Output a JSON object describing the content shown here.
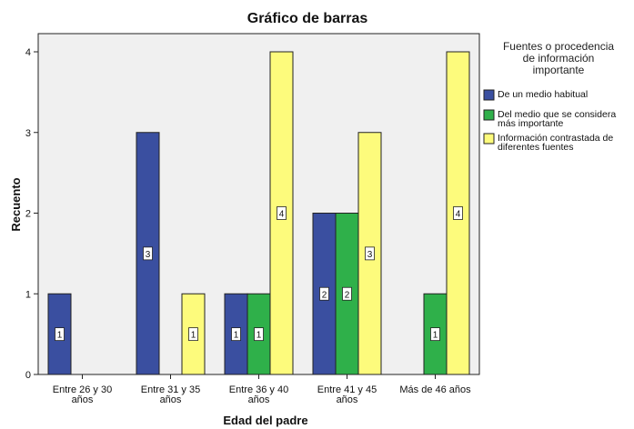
{
  "colors": {
    "plot_background": "#f0f0f0",
    "series": [
      "#3a4fa0",
      "#2fb04a",
      "#fdfb7c"
    ],
    "bar_stroke": "#222222"
  },
  "chart_data": {
    "type": "bar",
    "title": "Gráfico de barras",
    "xlabel": "Edad del padre",
    "ylabel": "Recuento",
    "ylim": [
      0,
      4
    ],
    "yticks": [
      0,
      1,
      2,
      3,
      4
    ],
    "categories": [
      [
        "Entre 26 y 30",
        "años"
      ],
      [
        "Entre 31 y 35",
        "años"
      ],
      [
        "Entre 36 y 40",
        "años"
      ],
      [
        "Entre 41 y 45",
        "años"
      ],
      [
        "Más de 46 años"
      ]
    ],
    "legend_title": [
      "Fuentes o procedencia",
      "de información",
      "importante"
    ],
    "legend_position": "right",
    "grid": false,
    "data_labels": true,
    "series": [
      {
        "name": [
          "De un medio habitual"
        ],
        "values": [
          1,
          3,
          1,
          2,
          null
        ]
      },
      {
        "name": [
          "Del medio que se considera",
          "más importante"
        ],
        "values": [
          null,
          null,
          1,
          2,
          1
        ]
      },
      {
        "name": [
          "Información contrastada de",
          "diferentes fuentes"
        ],
        "values": [
          null,
          1,
          4,
          3,
          4
        ]
      }
    ]
  }
}
